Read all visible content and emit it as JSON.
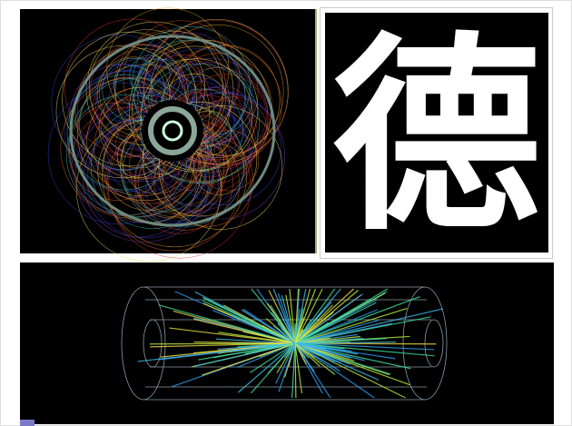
{
  "panels": {
    "character": "德"
  }
}
